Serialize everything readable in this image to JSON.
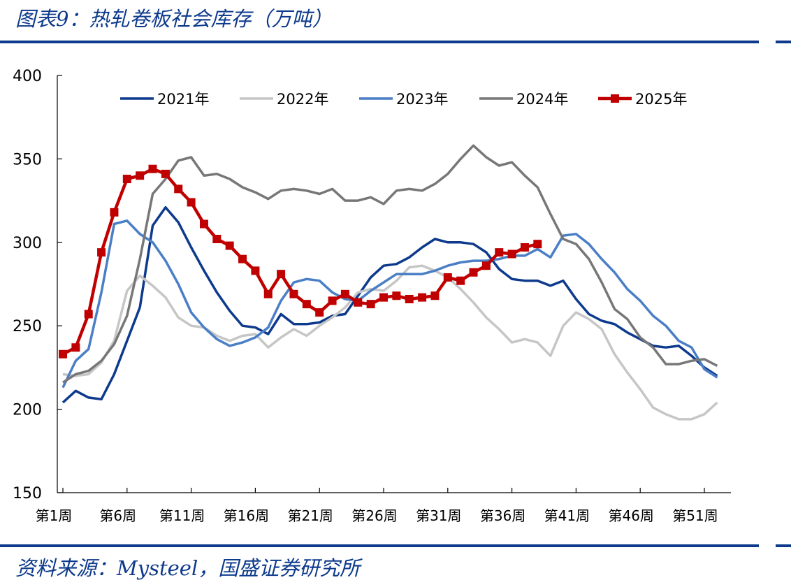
{
  "header": {
    "title": "图表9：热轧卷板社会库存（万吨）"
  },
  "footer": {
    "source": "资料来源：Mysteel，国盛证券研究所"
  },
  "colors": {
    "brand": "#0d3a8c"
  },
  "chart_data": {
    "type": "line",
    "title": "热轧卷板社会库存（万吨）",
    "ylim": [
      150,
      400
    ],
    "yticks": [
      150,
      200,
      250,
      300,
      350,
      400
    ],
    "xlim": [
      1,
      53
    ],
    "xticks": [
      1,
      6,
      11,
      16,
      21,
      26,
      31,
      36,
      41,
      46,
      51
    ],
    "xtick_labels": [
      "第1周",
      "第6周",
      "第11周",
      "第16周",
      "第21周",
      "第26周",
      "第31周",
      "第36周",
      "第41周",
      "第46周",
      "第51周"
    ],
    "grid": false,
    "legend": "top",
    "series": [
      {
        "name": "2021年",
        "color": "#0d3a8c",
        "markers": false,
        "values": [
          204,
          211,
          207,
          206,
          221,
          241,
          261,
          310,
          321,
          312,
          297,
          283,
          270,
          259,
          250,
          249,
          245,
          257,
          251,
          251,
          252,
          256,
          257,
          268,
          279,
          286,
          287,
          291,
          297,
          302,
          300,
          300,
          299,
          294,
          284,
          278,
          277,
          277,
          274,
          277,
          266,
          257,
          253,
          251,
          246,
          242,
          238,
          237,
          238,
          232,
          225,
          220
        ]
      },
      {
        "name": "2022年",
        "color": "#c6c6c6",
        "markers": false,
        "values": [
          221,
          220,
          221,
          228,
          241,
          271,
          280,
          274,
          267,
          255,
          250,
          249,
          244,
          241,
          244,
          245,
          237,
          243,
          248,
          244,
          250,
          255,
          261,
          270,
          272,
          271,
          277,
          285,
          286,
          283,
          279,
          272,
          264,
          255,
          248,
          240,
          242,
          240,
          232,
          250,
          258,
          254,
          248,
          233,
          222,
          212,
          201,
          197,
          194,
          194,
          197,
          204
        ]
      },
      {
        "name": "2023年",
        "color": "#4a7fc6",
        "markers": false,
        "values": [
          213,
          229,
          236,
          270,
          311,
          313,
          305,
          300,
          289,
          275,
          258,
          249,
          242,
          238,
          240,
          243,
          249,
          265,
          276,
          278,
          277,
          270,
          266,
          265,
          271,
          276,
          281,
          281,
          281,
          283,
          286,
          288,
          289,
          289,
          290,
          292,
          292,
          296,
          291,
          304,
          305,
          299,
          290,
          282,
          272,
          265,
          256,
          250,
          241,
          237,
          224,
          219
        ]
      },
      {
        "name": "2024年",
        "color": "#777777",
        "markers": false,
        "values": [
          216,
          221,
          223,
          229,
          239,
          256,
          290,
          329,
          338,
          349,
          351,
          340,
          341,
          338,
          333,
          330,
          326,
          331,
          332,
          331,
          329,
          332,
          325,
          325,
          327,
          323,
          331,
          332,
          331,
          335,
          341,
          350,
          358,
          351,
          346,
          348,
          340,
          333,
          317,
          302,
          299,
          290,
          276,
          260,
          254,
          243,
          237,
          227,
          227,
          229,
          230,
          226
        ]
      },
      {
        "name": "2025年",
        "color": "#c00000",
        "markers": true,
        "values": [
          233,
          237,
          257,
          294,
          318,
          338,
          340,
          344,
          341,
          332,
          324,
          311,
          302,
          298,
          290,
          283,
          269,
          281,
          269,
          263,
          258,
          265,
          269,
          264,
          263,
          267,
          268,
          266,
          267,
          268,
          279,
          277,
          282,
          286,
          294,
          293,
          297,
          299
        ]
      }
    ]
  }
}
